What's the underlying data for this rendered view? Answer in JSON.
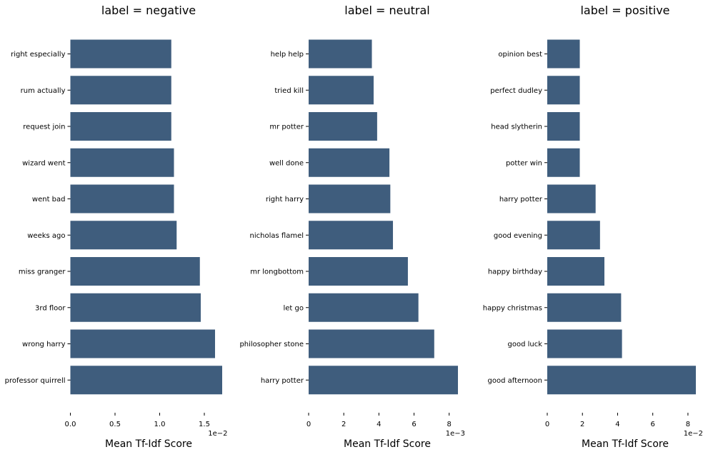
{
  "colors": {
    "bar": "#3f5d7d",
    "axis": "#000000",
    "background": "#ffffff"
  },
  "chart_data": [
    {
      "type": "bar",
      "orientation": "horizontal",
      "title": "label = negative",
      "xlabel": "Mean Tf-Idf Score",
      "x_scale_label": "1e−2",
      "xlim": [
        0,
        1.68
      ],
      "xticks": [
        0.0,
        0.5,
        1.0,
        1.5
      ],
      "xtick_labels": [
        "0.0",
        "0.5",
        "1.0",
        "1.5"
      ],
      "categories": [
        "right especially",
        "rum actually",
        "request join",
        "wizard went",
        "went bad",
        "weeks ago",
        "miss granger",
        "3rd floor",
        "wrong harry",
        "professor quirrell"
      ],
      "values": [
        1.13,
        1.13,
        1.13,
        1.16,
        1.16,
        1.19,
        1.45,
        1.46,
        1.62,
        1.7
      ],
      "grid": false
    },
    {
      "type": "bar",
      "orientation": "horizontal",
      "title": "label = neutral",
      "xlabel": "Mean Tf-Idf Score",
      "x_scale_label": "1e−3",
      "xlim": [
        0,
        8.5
      ],
      "xticks": [
        0,
        2,
        4,
        6,
        8
      ],
      "xtick_labels": [
        "0",
        "2",
        "4",
        "6",
        "8"
      ],
      "categories": [
        "help help",
        "tried kill",
        "mr potter",
        "well done",
        "right harry",
        "nicholas flamel",
        "mr longbottom",
        "let go",
        "philosopher stone",
        "harry potter"
      ],
      "values": [
        3.6,
        3.7,
        3.9,
        4.6,
        4.65,
        4.8,
        5.65,
        6.25,
        7.15,
        8.5
      ],
      "grid": false
    },
    {
      "type": "bar",
      "orientation": "horizontal",
      "title": "label = positive",
      "xlabel": "Mean Tf-Idf Score",
      "x_scale_label": "1e−2",
      "xlim": [
        0,
        8.45
      ],
      "xticks": [
        0,
        2,
        4,
        6,
        8
      ],
      "xtick_labels": [
        "0",
        "2",
        "4",
        "6",
        "8"
      ],
      "categories": [
        "opinion best",
        "perfect dudley",
        "head slytherin",
        "potter win",
        "harry potter",
        "good evening",
        "happy birthday",
        "happy christmas",
        "good luck",
        "good afternoon"
      ],
      "values": [
        1.85,
        1.85,
        1.85,
        1.85,
        2.75,
        3.0,
        3.25,
        4.2,
        4.25,
        8.45
      ],
      "grid": false
    }
  ]
}
